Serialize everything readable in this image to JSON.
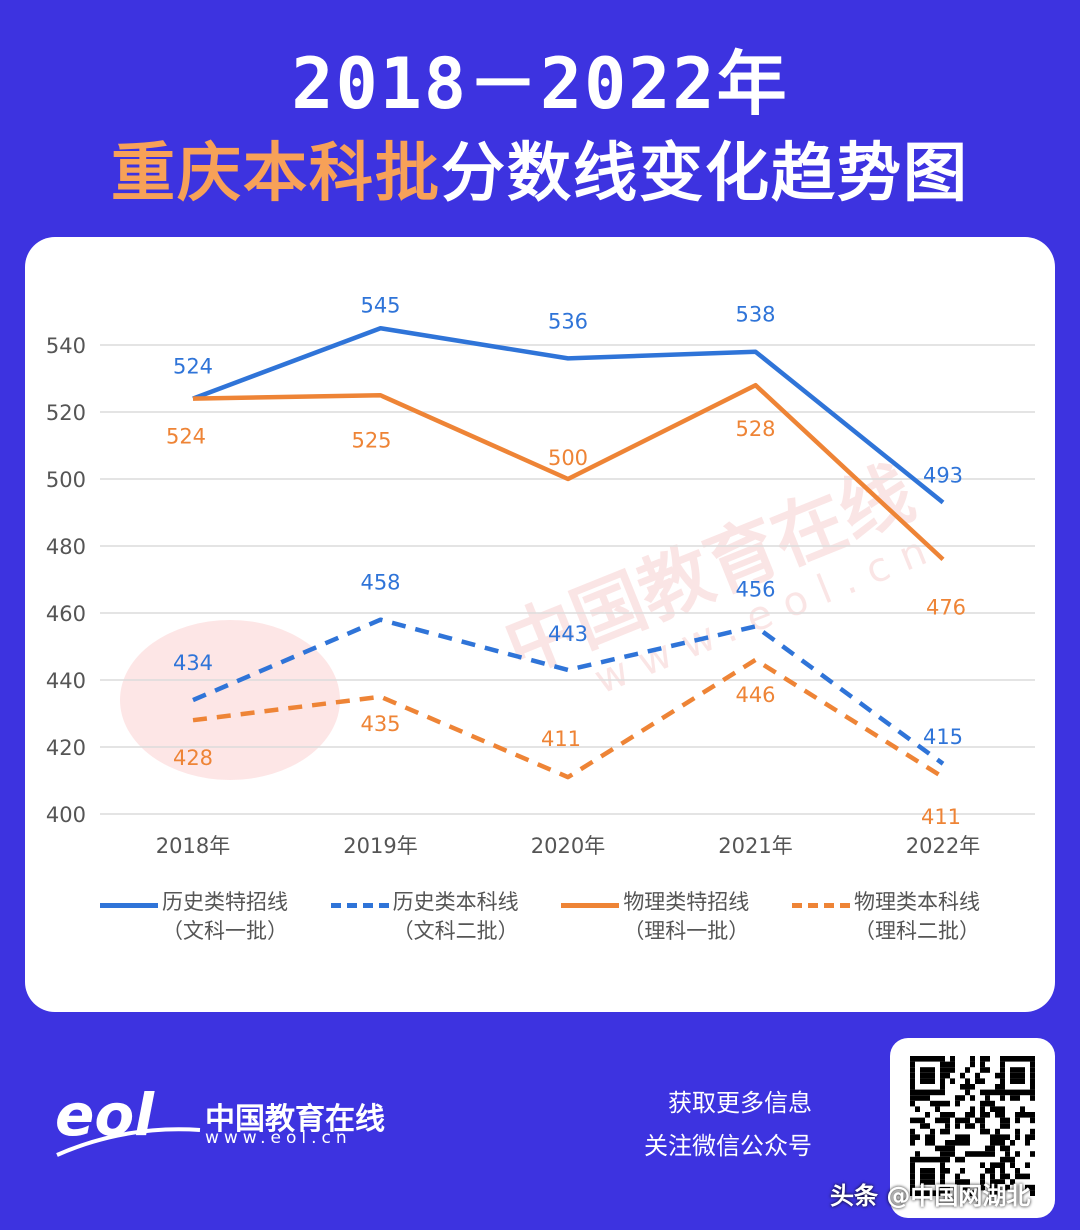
{
  "title_line1": "2018－2022年",
  "title_line2_highlight": "重庆本科批",
  "title_line2_rest": "分数线变化趋势图",
  "chart_data": {
    "type": "line",
    "categories": [
      "2018年",
      "2019年",
      "2020年",
      "2021年",
      "2022年"
    ],
    "ylim": [
      400,
      540
    ],
    "yticks": [
      400,
      420,
      440,
      460,
      480,
      500,
      520,
      540
    ],
    "grid": true,
    "legend_placement": "bottom",
    "series": [
      {
        "name": "历史类特招线",
        "sub": "（文科一批）",
        "color": "#2f74d8",
        "dashed": false,
        "values": [
          524,
          545,
          536,
          538,
          493
        ]
      },
      {
        "name": "历史类本科线",
        "sub": "（文科二批）",
        "color": "#2f74d8",
        "dashed": true,
        "values": [
          434,
          458,
          443,
          456,
          415
        ]
      },
      {
        "name": "物理类特招线",
        "sub": "（理科一批）",
        "color": "#ee8436",
        "dashed": false,
        "values": [
          524,
          525,
          500,
          528,
          476
        ]
      },
      {
        "name": "物理类本科线",
        "sub": "（理科二批）",
        "color": "#ee8436",
        "dashed": true,
        "values": [
          428,
          435,
          411,
          446,
          411
        ]
      }
    ]
  },
  "watermark": {
    "text": "中国教育在线",
    "url": "www.eol.cn"
  },
  "footer": {
    "logo_text": "中国教育在线",
    "logo_url": "www.eol.cn",
    "info_line1": "获取更多信息",
    "info_line2": "关注微信公众号",
    "credit": "头条 @中国网湖北"
  }
}
